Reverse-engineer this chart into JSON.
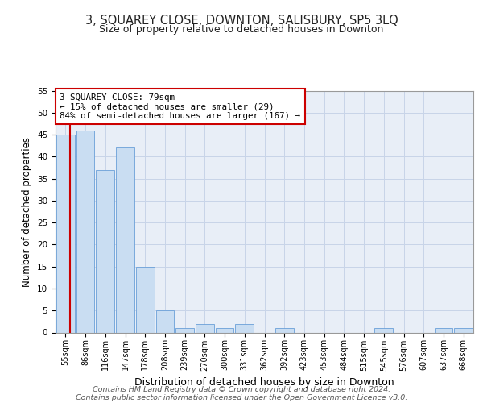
{
  "title": "3, SQUAREY CLOSE, DOWNTON, SALISBURY, SP5 3LQ",
  "subtitle": "Size of property relative to detached houses in Downton",
  "xlabel": "Distribution of detached houses by size in Downton",
  "ylabel": "Number of detached properties",
  "footer_line1": "Contains HM Land Registry data © Crown copyright and database right 2024.",
  "footer_line2": "Contains public sector information licensed under the Open Government Licence v3.0.",
  "bin_labels": [
    "55sqm",
    "86sqm",
    "116sqm",
    "147sqm",
    "178sqm",
    "208sqm",
    "239sqm",
    "270sqm",
    "300sqm",
    "331sqm",
    "362sqm",
    "392sqm",
    "423sqm",
    "453sqm",
    "484sqm",
    "515sqm",
    "545sqm",
    "576sqm",
    "607sqm",
    "637sqm",
    "668sqm"
  ],
  "bar_heights": [
    45,
    46,
    37,
    42,
    15,
    5,
    1,
    2,
    1,
    2,
    0,
    1,
    0,
    0,
    0,
    0,
    1,
    0,
    0,
    1,
    1
  ],
  "bar_color": "#c9ddf2",
  "bar_edge_color": "#6a9fd8",
  "grid_color": "#c8d4e8",
  "background_color": "#e8eef7",
  "vline_color": "#cc0000",
  "annotation_text": "3 SQUAREY CLOSE: 79sqm\n← 15% of detached houses are smaller (29)\n84% of semi-detached houses are larger (167) →",
  "annotation_box_edge": "#cc0000",
  "ylim": [
    0,
    55
  ],
  "yticks": [
    0,
    5,
    10,
    15,
    20,
    25,
    30,
    35,
    40,
    45,
    50,
    55
  ]
}
